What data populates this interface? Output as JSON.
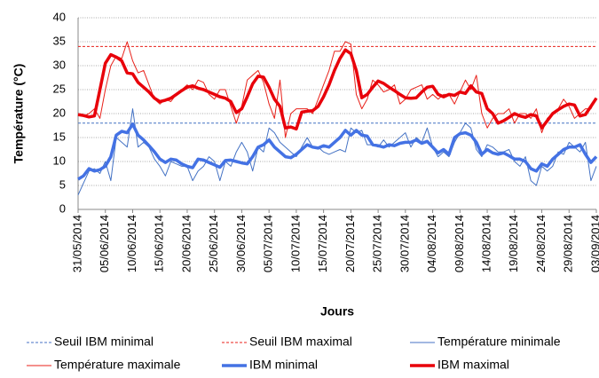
{
  "chart_data": {
    "type": "line",
    "ylabel": "Température (°C)",
    "xlabel": "Jours",
    "ylim": [
      0,
      40
    ],
    "yticks": [
      0,
      5,
      10,
      15,
      20,
      25,
      30,
      35,
      40
    ],
    "grid": true,
    "categories": [
      "31/05/2014",
      null,
      null,
      null,
      null,
      "05/06/2014",
      null,
      null,
      null,
      null,
      "10/06/2014",
      null,
      null,
      null,
      null,
      "15/06/2014",
      null,
      null,
      null,
      null,
      "20/06/2014",
      null,
      null,
      null,
      null,
      "25/06/2014",
      null,
      null,
      null,
      null,
      "30/06/2014",
      null,
      null,
      null,
      null,
      "05/07/2014",
      null,
      null,
      null,
      null,
      "10/07/2014",
      null,
      null,
      null,
      null,
      "15/07/2014",
      null,
      null,
      null,
      null,
      "20/07/2014",
      null,
      null,
      null,
      null,
      "25/07/2014",
      null,
      null,
      null,
      null,
      "30/07/2014",
      null,
      null,
      null,
      null,
      "04/08/2014",
      null,
      null,
      null,
      null,
      "09/08/2014",
      null,
      null,
      null,
      null,
      "14/08/2014",
      null,
      null,
      null,
      null,
      "19/08/2014",
      null,
      null,
      null,
      null,
      "24/08/2014",
      null,
      null,
      null,
      null,
      "29/08/2014",
      null,
      null,
      null,
      null,
      "03/09/2014"
    ],
    "series": [
      {
        "name": "Seuil IBM minimal",
        "color": "#4472c4",
        "width": 1,
        "dashed": true,
        "value": 18
      },
      {
        "name": "Seuil IBM maximal",
        "color": "#e8211a",
        "width": 1,
        "dashed": true,
        "value": 34
      },
      {
        "name": "Température minimale",
        "color": "#4472c4",
        "width": 1,
        "dashed": false,
        "values": [
          3,
          5.5,
          8,
          8.5,
          7.5,
          10,
          6,
          15,
          14,
          13,
          21,
          13,
          14,
          13,
          10.5,
          9,
          7,
          10,
          9.5,
          9,
          9,
          6,
          8,
          9,
          11,
          10,
          6,
          10,
          9,
          12,
          14,
          12,
          8,
          13,
          12,
          17,
          16,
          14,
          13,
          12,
          11,
          13,
          15,
          13,
          13,
          12,
          11.5,
          12,
          12.5,
          12,
          17,
          16,
          16.5,
          13.5,
          13.5,
          13,
          14.5,
          13,
          14,
          15,
          16,
          13,
          15,
          14,
          17,
          13,
          11,
          12,
          11,
          14,
          16,
          18,
          17,
          12.5,
          11,
          13.5,
          13,
          12,
          12,
          12.5,
          10,
          9,
          11,
          6,
          5,
          9,
          8,
          9,
          12,
          11.5,
          14,
          13,
          12,
          14,
          6,
          9
        ]
      },
      {
        "name": "Température maximale",
        "color": "#e8211a",
        "width": 1,
        "dashed": false,
        "values": [
          19.8,
          19.5,
          20,
          21,
          19,
          25,
          30,
          32,
          31.5,
          35,
          31,
          28.5,
          29,
          26,
          23,
          22,
          23,
          22.5,
          24,
          25,
          26,
          25,
          27,
          26.5,
          24,
          23,
          25,
          25,
          21.5,
          18,
          21.5,
          27,
          28,
          29,
          26.5,
          22,
          19,
          27,
          15,
          20,
          21,
          21,
          21,
          20,
          23,
          26,
          29,
          33,
          33,
          35,
          34.5,
          24,
          21,
          23,
          27,
          26,
          24.5,
          25,
          26,
          22,
          23,
          25,
          25.5,
          26,
          23,
          24,
          23,
          24,
          24,
          22,
          24.5,
          27,
          25,
          28,
          20,
          17,
          19,
          20,
          20,
          21,
          18,
          20,
          20,
          19,
          21,
          16,
          19,
          20,
          21,
          23,
          21.5,
          19,
          20,
          21,
          21,
          23.3
        ]
      },
      {
        "name": "IBM minimal",
        "color": "#4472e4",
        "width": 3.5,
        "dashed": false,
        "values": [
          6.3,
          7,
          8.5,
          8,
          8.3,
          9,
          11,
          15.5,
          16.3,
          16,
          17.8,
          15.5,
          14.5,
          13.3,
          12,
          10.5,
          9.8,
          10.5,
          10.3,
          9.5,
          9,
          8.7,
          10.5,
          10.3,
          9.8,
          9.3,
          8.8,
          10.2,
          10.3,
          10,
          9.7,
          9.5,
          11,
          13,
          13.5,
          14.5,
          13,
          12,
          11,
          10.8,
          11.5,
          12.5,
          13.5,
          13,
          12.8,
          13.3,
          13,
          14,
          15,
          16.5,
          15.5,
          16.5,
          15.5,
          15.3,
          13.5,
          13.3,
          13,
          13.5,
          13.3,
          13.8,
          14,
          14,
          14.5,
          13.8,
          14.2,
          13,
          11.8,
          12.5,
          11.5,
          15,
          15.8,
          16,
          15.5,
          14,
          11.5,
          12.5,
          11.8,
          11.5,
          11.8,
          11.2,
          10.5,
          10.5,
          10,
          8.5,
          8,
          9.5,
          9,
          10.5,
          11.5,
          12.5,
          13,
          13,
          13.5,
          11.5,
          9.8,
          11
        ]
      },
      {
        "name": "IBM maximal",
        "color": "#e8000a",
        "width": 3.5,
        "dashed": false,
        "values": [
          19.8,
          19.6,
          19.3,
          19.5,
          25,
          30.5,
          32.3,
          31.8,
          31,
          28.5,
          28.3,
          26.5,
          25.5,
          24.5,
          23.2,
          22.5,
          22.8,
          23.2,
          24,
          24.8,
          25.5,
          25.8,
          25.3,
          25,
          24.5,
          24,
          23.5,
          23.2,
          22.5,
          20.2,
          21,
          23.5,
          26.2,
          27.8,
          27.6,
          25.5,
          23,
          21.5,
          17,
          17.2,
          16.8,
          20.3,
          20.5,
          20.6,
          21.5,
          23.5,
          26,
          29,
          31.5,
          33.3,
          32.5,
          29,
          23.3,
          24,
          25.5,
          26.8,
          26.3,
          25.5,
          24.8,
          24,
          23.3,
          23.2,
          23.3,
          24.5,
          25.5,
          25.7,
          24,
          23.5,
          24,
          23.8,
          24.5,
          24.2,
          25.8,
          24.5,
          24.2,
          21,
          20,
          18,
          18.5,
          19.2,
          20,
          19.5,
          19.2,
          19.8,
          19.5,
          17,
          18.5,
          20,
          20.8,
          21.5,
          22,
          21.8,
          19.5,
          19.8,
          21.5,
          23.2
        ]
      }
    ]
  }
}
